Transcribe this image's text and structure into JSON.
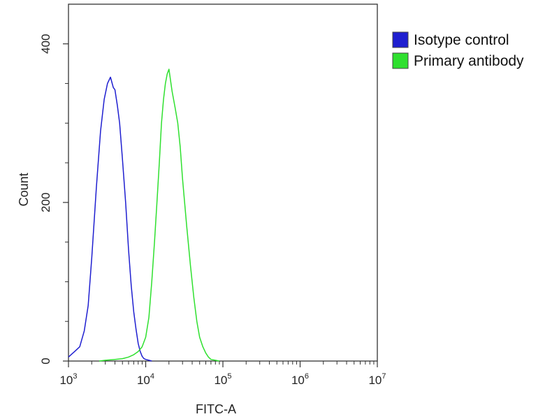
{
  "chart_data": {
    "type": "line",
    "title": "",
    "xlabel": "FITC-A",
    "ylabel": "Count",
    "xscale": "log",
    "xlim": [
      1000,
      10000000
    ],
    "ylim": [
      0,
      450
    ],
    "grid": false,
    "legend_placement": "outside-right-top",
    "x_ticks": [
      {
        "value": 1000,
        "base": "10",
        "exp": "3"
      },
      {
        "value": 10000,
        "base": "10",
        "exp": "4"
      },
      {
        "value": 100000,
        "base": "10",
        "exp": "5"
      },
      {
        "value": 1000000,
        "base": "10",
        "exp": "6"
      },
      {
        "value": 10000000,
        "base": "10",
        "exp": "7"
      }
    ],
    "y_ticks": [
      {
        "value": 0,
        "label": "0"
      },
      {
        "value": 200,
        "label": "200"
      },
      {
        "value": 400,
        "label": "400"
      }
    ],
    "series": [
      {
        "name": "Isotype control",
        "color": "#1f1fd0",
        "x": [
          1000,
          1200,
          1400,
          1600,
          1800,
          2000,
          2300,
          2600,
          2900,
          3200,
          3500,
          3800,
          4000,
          4300,
          4600,
          5000,
          5500,
          6000,
          6500,
          7000,
          7500,
          8000,
          8500,
          9000,
          9500,
          10000,
          11000,
          12000
        ],
        "values": [
          5,
          12,
          18,
          38,
          70,
          130,
          220,
          290,
          330,
          350,
          358,
          345,
          342,
          322,
          300,
          255,
          200,
          140,
          95,
          62,
          40,
          22,
          12,
          6,
          3,
          2,
          1,
          0
        ]
      },
      {
        "name": "Primary antibody",
        "color": "#2fe02f",
        "x": [
          2500,
          3000,
          4000,
          5000,
          6000,
          7000,
          8000,
          9000,
          10000,
          11000,
          12000,
          13000,
          14000,
          15000,
          16000,
          17000,
          18000,
          19000,
          20000,
          22000,
          24000,
          26000,
          28000,
          30000,
          34000,
          38000,
          42000,
          46000,
          50000,
          55000,
          60000,
          65000,
          70000,
          80000,
          90000
        ],
        "values": [
          0,
          1,
          2,
          3,
          5,
          8,
          12,
          18,
          30,
          55,
          100,
          150,
          200,
          250,
          300,
          330,
          350,
          362,
          368,
          340,
          320,
          300,
          270,
          230,
          170,
          120,
          80,
          50,
          30,
          18,
          10,
          5,
          2,
          1,
          0
        ]
      }
    ]
  }
}
